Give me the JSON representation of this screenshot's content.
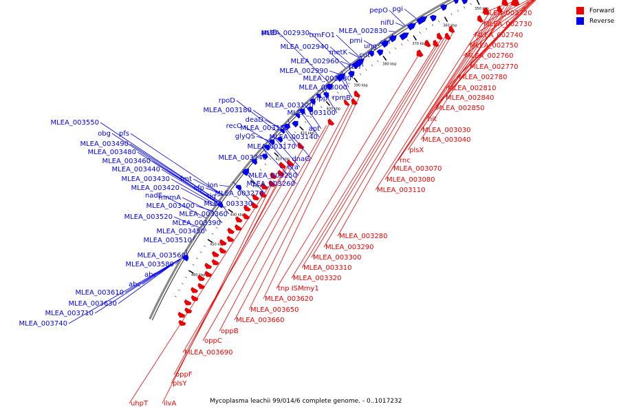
{
  "caption": "Mycoplasma leachii 99/014/6 complete genome. - 0..1017232",
  "legend": [
    {
      "label": "Forward",
      "color": "#ee0000"
    },
    {
      "label": "Reverse",
      "color": "#0000ee"
    }
  ],
  "colors": {
    "forward": "#ee0000",
    "reverse": "#0000ee",
    "backbone": "#888888"
  },
  "tick_labels": [
    "330 kbp",
    "340 kbp",
    "350 kbp",
    "360 kbp",
    "370 kbp",
    "380 kbp",
    "390 kbp",
    "400 kbp",
    "410 kbp",
    "420 kbp",
    "430 kbp",
    "440 kbp",
    "450 kbp",
    "460 kbp"
  ],
  "forward_labels": [
    "MLEA_002720",
    "MLEA_002730",
    "MLEA_002740",
    "MLEA_002750",
    "MLEA_002760",
    "MLEA_002770",
    "MLEA_002780",
    "MLEA_002810",
    "MLEA_002840",
    "MLEA_002850",
    "hit",
    "MLEA_003030",
    "MLEA_003040",
    "plsX",
    "rnc",
    "MLEA_003070",
    "MLEA_003080",
    "MLEA_003110",
    "MLEA_003280",
    "MLEA_003290",
    "MLEA_003300",
    "MLEA_003310",
    "MLEA_003320",
    "tnp ISMmy1",
    "MLEA_003620",
    "MLEA_003650",
    "MLEA_003660",
    "oppB",
    "oppC",
    "MLEA_003690",
    "oppF",
    "plsY",
    "ilvA",
    "uhpT"
  ],
  "reverse_labels": [
    "pepO",
    "pgi",
    "nifU",
    "pstB",
    "MLEA_002930",
    "trmFO1",
    "MLEA_002830",
    "pmi",
    "ung",
    "cbf",
    "MLEA_002940",
    "metK",
    "cut",
    "MLEA_002960",
    "ftsY",
    "MLEA_002990",
    "MLEA_002980",
    "MLEA_003000",
    "lpp",
    "rpmB",
    "rpoD",
    "MLEA_003120",
    "MLEA_003180",
    "MLEA_003100",
    "deaD",
    "recO",
    "MLEA_003150",
    "apt",
    "glyQS",
    "MLEA_003140",
    "MLEA_003550",
    "obg",
    "pfs",
    "MLEA_003170",
    "MLEA_003490",
    "dnaG",
    "MLEA_003480",
    "MLEA_003240",
    "era",
    "MLEA_003460",
    "MLEA_003250",
    "MLEA_003440",
    "MLEA_003260",
    "MLEA_003430",
    "fmt",
    "lon",
    "MLEA_003420",
    "efp",
    "tig",
    "MLEA_003270",
    "nadE",
    "mnmA",
    "MLEA_003400",
    "MLEA_003330",
    "MLEA_003520",
    "MLEA_003360",
    "MLEA_003390",
    "MLEA_003450",
    "MLEA_003510",
    "MLEA_003560",
    "MLEA_003580",
    "abc",
    "abc",
    "MLEA_003610",
    "MLEA_003630",
    "MLEA_003710",
    "MLEA_003740"
  ]
}
